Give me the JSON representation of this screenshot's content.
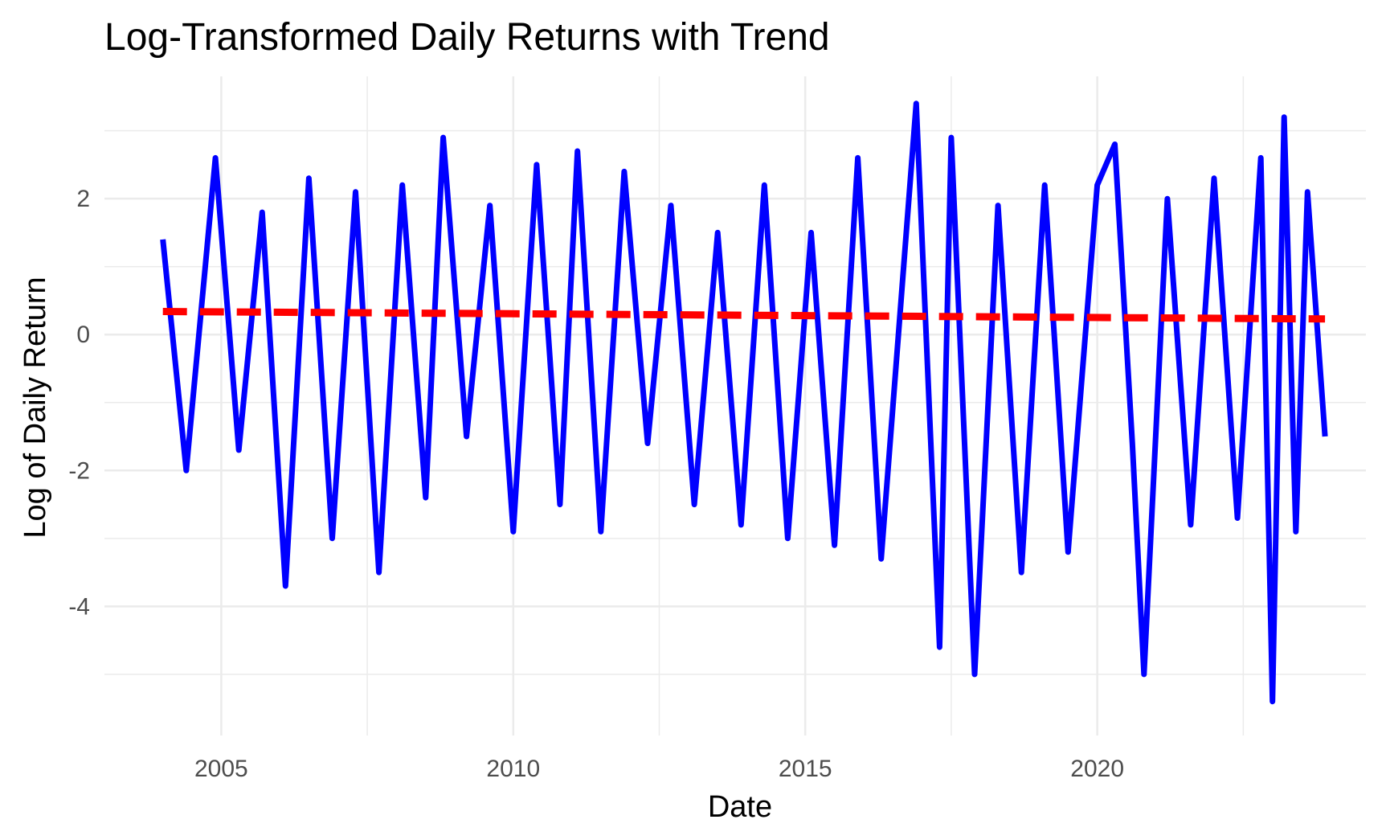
{
  "chart_data": {
    "type": "line",
    "title": "Log-Transformed Daily Returns with Trend",
    "xlabel": "Date",
    "ylabel": "Log of Daily Return",
    "xlim": [
      2003.0,
      2024.6
    ],
    "ylim": [
      -5.9,
      3.8
    ],
    "x_ticks": [
      2005,
      2010,
      2015,
      2020
    ],
    "x_tick_labels": [
      "2005",
      "2010",
      "2015",
      "2020"
    ],
    "y_ticks": [
      -4,
      -2,
      0,
      2
    ],
    "y_tick_labels": [
      "-4",
      "-2",
      "0",
      "2"
    ],
    "grid": true,
    "legend": "none",
    "colors": {
      "returns": "#0000ff",
      "trend": "#ff0000",
      "grid": "#ebebeb"
    },
    "series": [
      {
        "style": "solid",
        "x": [
          2004.0,
          2004.4,
          2004.9,
          2005.3,
          2005.7,
          2006.1,
          2006.5,
          2006.9,
          2007.3,
          2007.7,
          2008.1,
          2008.5,
          2008.8,
          2009.2,
          2009.6,
          2010.0,
          2010.4,
          2010.8,
          2011.1,
          2011.5,
          2011.9,
          2012.3,
          2012.7,
          2013.1,
          2013.5,
          2013.9,
          2014.3,
          2014.7,
          2015.1,
          2015.5,
          2015.9,
          2016.3,
          2016.9,
          2017.3,
          2017.5,
          2017.9,
          2018.3,
          2018.7,
          2019.1,
          2019.5,
          2020.0,
          2020.3,
          2020.6,
          2020.8,
          2021.2,
          2021.6,
          2022.0,
          2022.4,
          2022.8,
          2023.0,
          2023.2,
          2023.4,
          2023.6,
          2023.9
        ],
        "y": [
          1.4,
          -2.0,
          2.6,
          -1.7,
          1.8,
          -3.7,
          2.3,
          -3.0,
          2.1,
          -3.5,
          2.2,
          -2.4,
          2.9,
          -1.5,
          1.9,
          -2.9,
          2.5,
          -2.5,
          2.7,
          -2.9,
          2.4,
          -1.6,
          1.9,
          -2.5,
          1.5,
          -2.8,
          2.2,
          -3.0,
          1.5,
          -3.1,
          2.6,
          -3.3,
          3.4,
          -4.6,
          2.9,
          -5.0,
          1.9,
          -3.5,
          2.2,
          -3.2,
          2.2,
          2.8,
          -1.6,
          -5.0,
          2.0,
          -2.8,
          2.3,
          -2.7,
          2.6,
          -5.4,
          3.2,
          -2.9,
          2.1,
          -1.5
        ]
      },
      {
        "style": "dashed",
        "x": [
          2004.0,
          2023.9
        ],
        "y": [
          0.34,
          0.23
        ]
      }
    ]
  }
}
